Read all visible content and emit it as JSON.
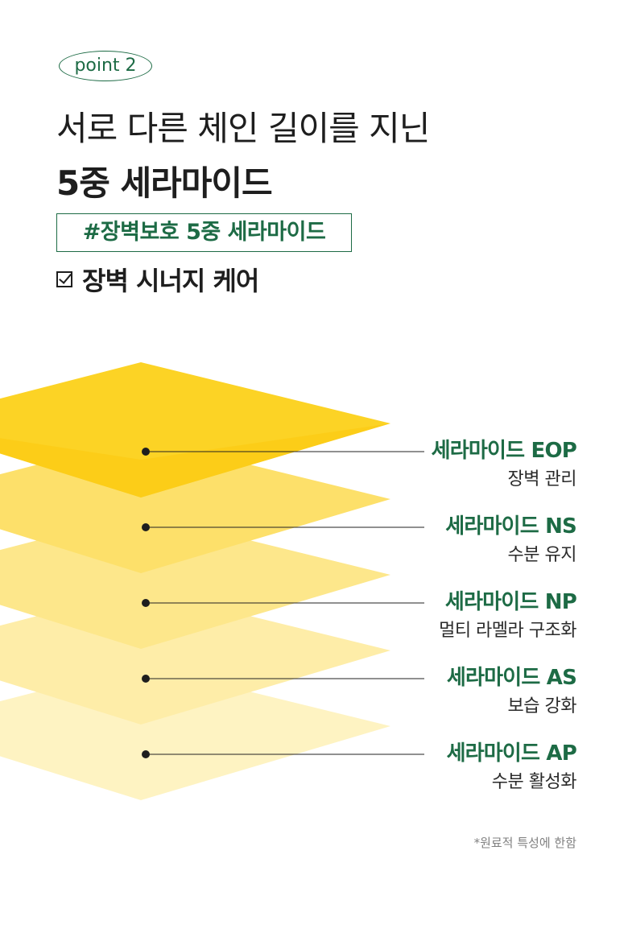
{
  "badge": "point 2",
  "headline": {
    "line1": "서로 다른 체인 길이를 지닌",
    "line2": "5중 세라마이드"
  },
  "hashtag": "#장벽보호 5중 세라마이드",
  "check": {
    "icon": "check-box-icon",
    "label": "장벽 시너지 케어"
  },
  "ceramides": [
    {
      "name": "세라마이드 EOP",
      "desc": "장벽 관리",
      "color": "#fcd325"
    },
    {
      "name": "세라마이드 NS",
      "desc": "수분 유지",
      "color": "#fde06a"
    },
    {
      "name": "세라마이드 NP",
      "desc": "멀티 라멜라 구조화",
      "color": "#fde78b"
    },
    {
      "name": "세라마이드 AS",
      "desc": "보습 강화",
      "color": "#feeda8"
    },
    {
      "name": "세라마이드 AP",
      "desc": "수분 활성화",
      "color": "#fef3c2"
    }
  ],
  "footnote": "*원료적 특성에 한함"
}
